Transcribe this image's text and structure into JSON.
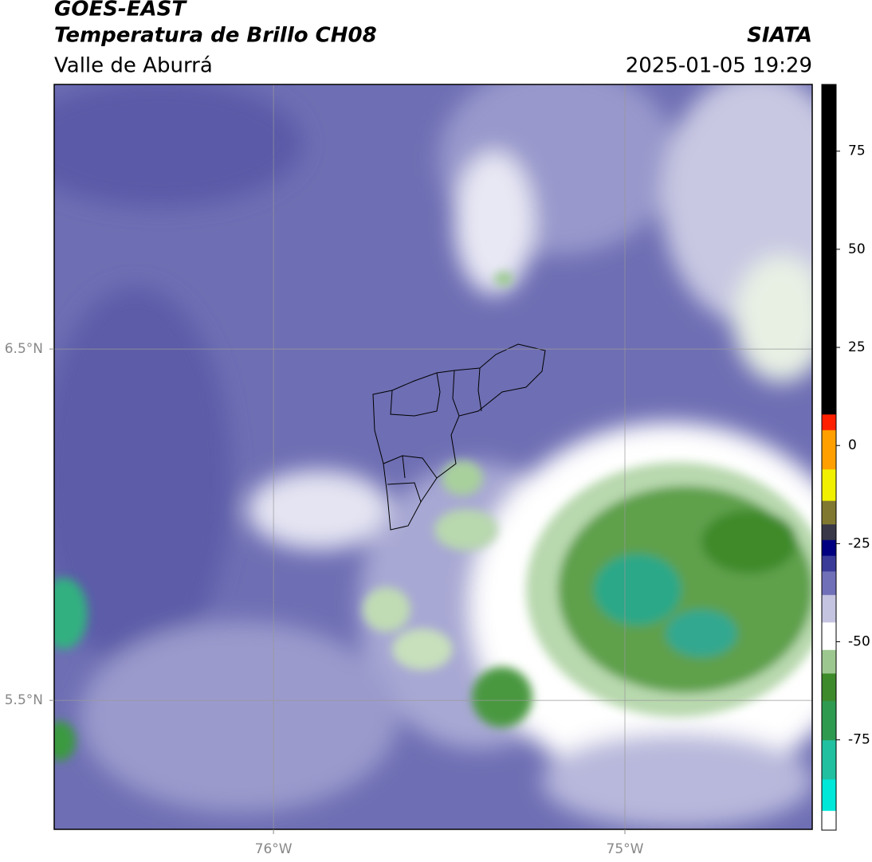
{
  "chart_data": {
    "type": "map",
    "title": "GOES-EAST",
    "subtitle": "Temperatura de Brillo CH08",
    "region": "Valle de Aburrá",
    "source": "SIATA",
    "timestamp": "2025-01-05 19:29",
    "xlim": [
      -76.624,
      -74.467
    ],
    "ylim": [
      5.133,
      7.253
    ],
    "xticks": [
      {
        "value": -76,
        "label": "76°W"
      },
      {
        "value": -75,
        "label": "75°W"
      }
    ],
    "yticks": [
      {
        "value": 6.5,
        "label": "6.5°N"
      },
      {
        "value": 5.5,
        "label": "5.5°N"
      }
    ],
    "grid": true,
    "colorbar": {
      "lim": [
        -98,
        92
      ],
      "ticks": [
        75,
        50,
        25,
        0,
        -25,
        -50,
        -75
      ],
      "stops": [
        {
          "value": -98,
          "color": "#ffffff"
        },
        {
          "value": -93,
          "color": "#00e8d8"
        },
        {
          "value": -85,
          "color": "#20c0a0"
        },
        {
          "value": -75,
          "color": "#2e9a50"
        },
        {
          "value": -65,
          "color": "#3d8a2a"
        },
        {
          "value": -58,
          "color": "#9cc890"
        },
        {
          "value": -52,
          "color": "#ffffff"
        },
        {
          "value": -45,
          "color": "#c4c4e0"
        },
        {
          "value": -38,
          "color": "#7070b8"
        },
        {
          "value": -32,
          "color": "#3a3a98"
        },
        {
          "value": -28,
          "color": "#000080"
        },
        {
          "value": -24,
          "color": "#383848"
        },
        {
          "value": -20,
          "color": "#807830"
        },
        {
          "value": -14,
          "color": "#f0f000"
        },
        {
          "value": -6,
          "color": "#ffa000"
        },
        {
          "value": 4,
          "color": "#ff2000"
        },
        {
          "value": 8,
          "color": "#000000"
        }
      ]
    }
  }
}
